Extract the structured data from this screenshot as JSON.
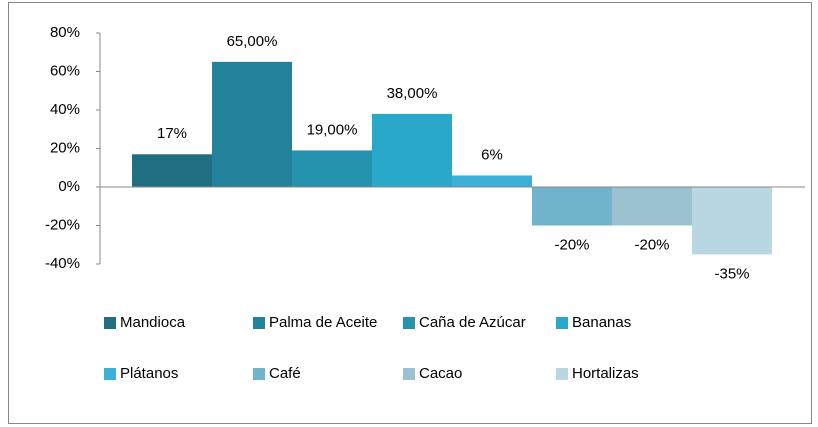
{
  "chart_data": {
    "type": "bar",
    "series": [
      {
        "name": "Mandioca",
        "color": "#1f6e82",
        "values": [
          17
        ],
        "value_labels": [
          "17%"
        ]
      },
      {
        "name": "Palma de Aceite",
        "color": "#22819b",
        "values": [
          65
        ],
        "value_labels": [
          "65,00%"
        ]
      },
      {
        "name": "Caña de Azúcar",
        "color": "#2592ae",
        "values": [
          19
        ],
        "value_labels": [
          "19,00%"
        ]
      },
      {
        "name": "Bananas",
        "color": "#2aa8ca",
        "values": [
          38
        ],
        "value_labels": [
          "38,00%"
        ]
      },
      {
        "name": "Plátanos",
        "color": "#3cb0d6",
        "values": [
          6
        ],
        "value_labels": [
          "6%"
        ]
      },
      {
        "name": "Café",
        "color": "#6fb3cd",
        "values": [
          -20
        ],
        "value_labels": [
          "-20%"
        ]
      },
      {
        "name": "Cacao",
        "color": "#9cc1d0",
        "values": [
          -20
        ],
        "value_labels": [
          "-20%"
        ]
      },
      {
        "name": "Hortalizas",
        "color": "#b8d7e2",
        "values": [
          -35
        ],
        "value_labels": [
          "-35%"
        ]
      }
    ],
    "ylim": [
      -40,
      80
    ],
    "yticks": [
      {
        "value": 80,
        "label": "80%"
      },
      {
        "value": 60,
        "label": "60%"
      },
      {
        "value": 40,
        "label": "40%"
      },
      {
        "value": 20,
        "label": "20%"
      },
      {
        "value": 0,
        "label": "0%"
      },
      {
        "value": -20,
        "label": "-20%"
      },
      {
        "value": -40,
        "label": "-40%"
      }
    ]
  }
}
